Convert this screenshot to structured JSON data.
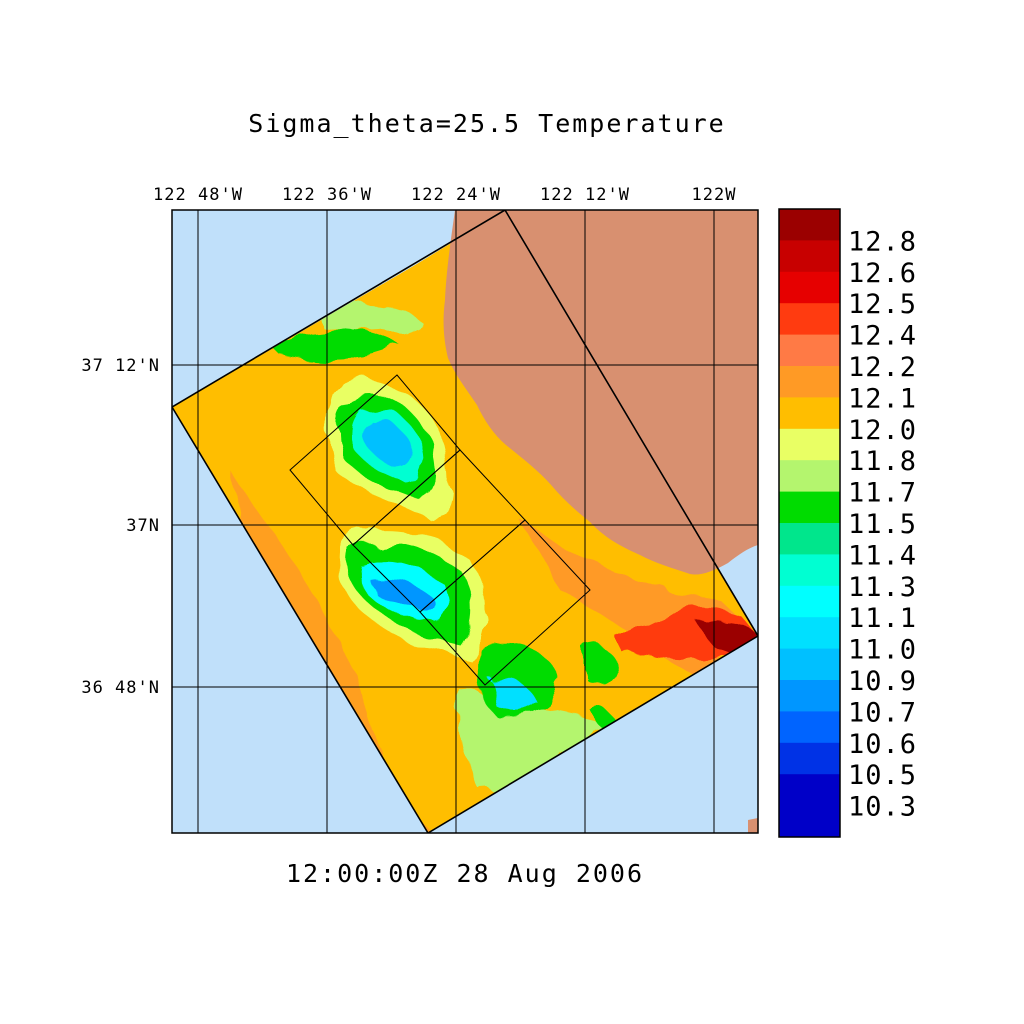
{
  "title": "Sigma_theta=25.5 Temperature",
  "timestamp": "12:00:00Z  28 Aug 2006",
  "axes": {
    "lon_ticks": [
      "122 48'W",
      "122 36'W",
      "122 24'W",
      "122 12'W",
      "122W"
    ],
    "lat_ticks": [
      "37 12'N",
      "37N",
      "36 48'N"
    ]
  },
  "colorbar": {
    "labels": [
      "12.8",
      "12.6",
      "12.5",
      "12.4",
      "12.2",
      "12.1",
      "12.0",
      "11.8",
      "11.7",
      "11.5",
      "11.4",
      "11.3",
      "11.1",
      "11.0",
      "10.9",
      "10.7",
      "10.6",
      "10.5",
      "10.3"
    ],
    "colors": [
      "#9b0000",
      "#c80000",
      "#e60000",
      "#ff3b10",
      "#ff7a45",
      "#ff9a25",
      "#ffbe00",
      "#e9ff64",
      "#b4f56e",
      "#00dc00",
      "#00e68c",
      "#00ffd2",
      "#00ffff",
      "#00e0ff",
      "#00c0ff",
      "#0096ff",
      "#0064ff",
      "#0032e6",
      "#0000c8"
    ]
  },
  "colors": {
    "ocean": "#c0e0fa",
    "land": "#d89070"
  }
}
